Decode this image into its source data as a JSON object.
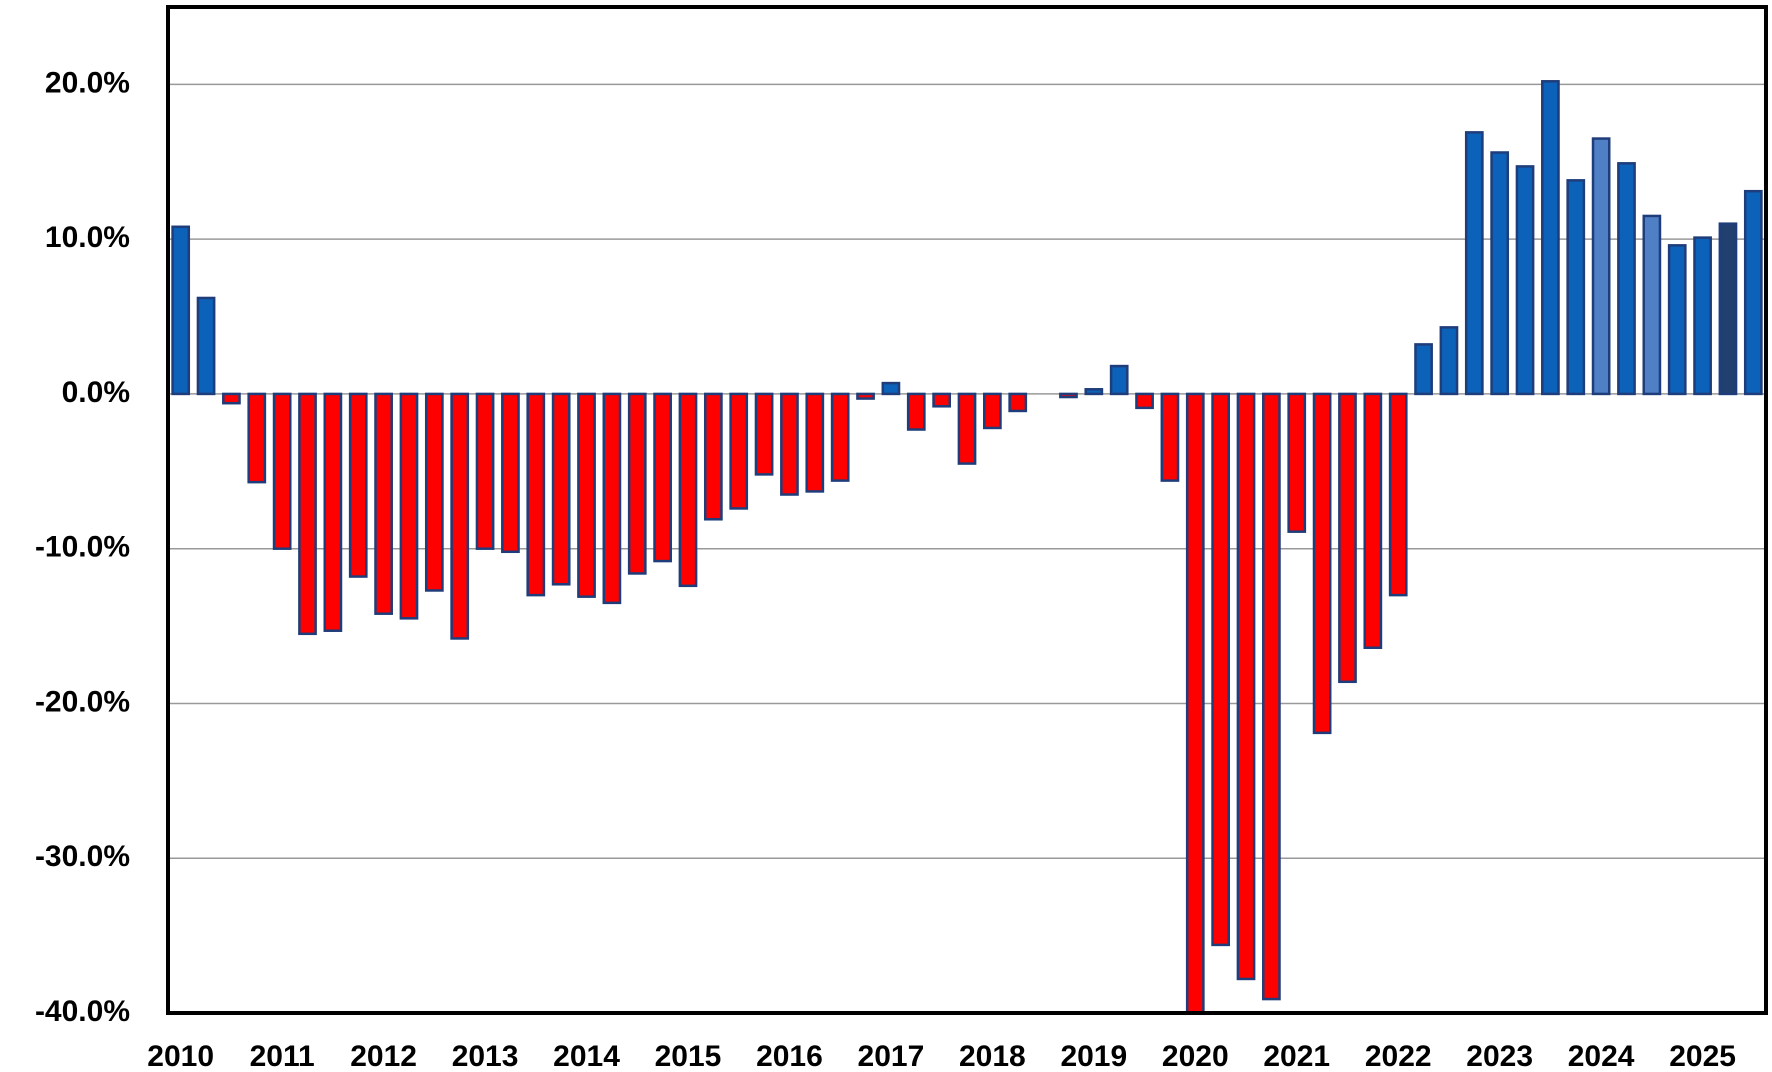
{
  "chart_data": {
    "type": "bar",
    "categories": [
      "2010",
      null,
      null,
      null,
      "2011",
      null,
      null,
      null,
      "2012",
      null,
      null,
      null,
      "2013",
      null,
      null,
      null,
      "2014",
      null,
      null,
      null,
      "2015",
      null,
      null,
      null,
      "2016",
      null,
      null,
      null,
      "2017",
      null,
      null,
      null,
      "2018",
      null,
      null,
      null,
      "2019",
      null,
      null,
      null,
      "2020",
      null,
      null,
      null,
      "2021",
      null,
      null,
      null,
      "2022",
      null,
      null,
      null,
      "2023",
      null,
      null,
      null,
      "2024",
      null,
      null,
      null,
      "2025",
      null,
      null
    ],
    "values": [
      10.8,
      6.2,
      -0.6,
      -5.7,
      -10.0,
      -15.5,
      -15.3,
      -11.8,
      -14.2,
      -14.5,
      -12.7,
      -15.8,
      -10.0,
      -10.2,
      -13.0,
      -12.3,
      -13.1,
      -13.5,
      -11.6,
      -10.8,
      -12.4,
      -8.1,
      -7.4,
      -5.2,
      -6.5,
      -6.3,
      -5.6,
      -0.3,
      0.7,
      -2.3,
      -0.8,
      -4.5,
      -2.2,
      -1.1,
      0,
      -0.2,
      0.3,
      1.8,
      -0.9,
      -5.6,
      -40.0,
      -35.6,
      -37.8,
      -39.1,
      -8.9,
      -21.9,
      -18.6,
      -16.4,
      -13.0,
      3.2,
      4.3,
      16.9,
      15.6,
      14.7,
      20.2,
      13.8,
      16.5,
      14.9,
      11.5,
      9.6,
      10.1,
      11.0,
      13.1
    ],
    "positive_color": "#0b62b8",
    "negative_color": "#ff0000",
    "edge_color": "#1f3d7a",
    "highlight_colors": {
      "56": "#4f7fc4",
      "58": "#4f7fc4",
      "61": "#213f6f"
    },
    "ylim": [
      -40,
      25
    ],
    "yticks": [
      {
        "value": -40,
        "label": "-40.0%"
      },
      {
        "value": -30,
        "label": "-30.0%"
      },
      {
        "value": -20,
        "label": "-20.0%"
      },
      {
        "value": -10,
        "label": "-10.0%"
      },
      {
        "value": 0,
        "label": "0.0%"
      },
      {
        "value": 10,
        "label": "10.0%"
      },
      {
        "value": 20,
        "label": "20.0%"
      }
    ],
    "grid": true
  }
}
